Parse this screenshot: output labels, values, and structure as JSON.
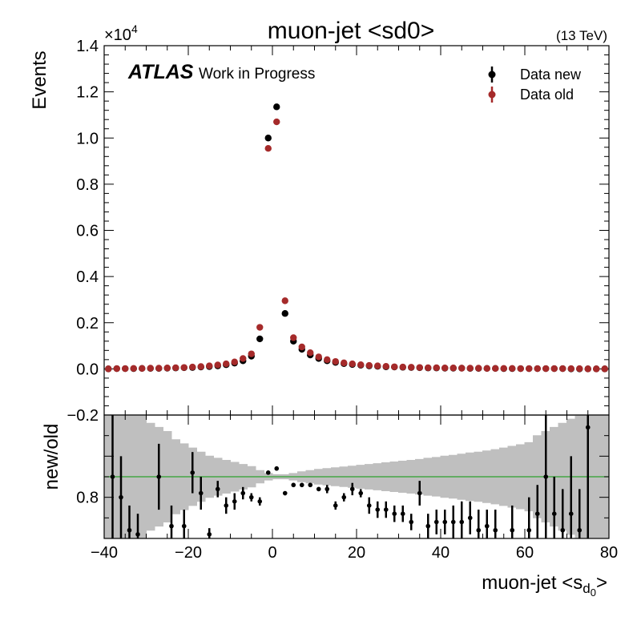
{
  "header": {
    "title": "muon-jet <sd0>",
    "energy": "(13 TeV)",
    "atlas": "ATLAS",
    "status": "Work in Progress",
    "exponent_base": "×10",
    "exponent_power": "4"
  },
  "colors": {
    "data_new": "#000000",
    "data_old": "#a52a2a",
    "band": "#bfbfbf",
    "ref_line": "#2ca02c"
  },
  "chart_data": [
    {
      "type": "scatter",
      "title": "muon-jet <sd0>",
      "ylabel": "Events",
      "xlim": [
        -40,
        80
      ],
      "ylim": [
        -0.2,
        1.4
      ],
      "y_scale_note": "×10^4",
      "yticks": [
        "−0.2",
        "0.0",
        "0.2",
        "0.4",
        "0.6",
        "0.8",
        "1.0",
        "1.2",
        "1.4"
      ],
      "legend_position": "top-right",
      "series": [
        {
          "name": "Data new",
          "x": [
            -39,
            -37,
            -35,
            -33,
            -31,
            -29,
            -27,
            -25,
            -23,
            -21,
            -19,
            -17,
            -15,
            -13,
            -11,
            -9,
            -7,
            -5,
            -3,
            -1,
            1,
            3,
            5,
            7,
            9,
            11,
            13,
            15,
            17,
            19,
            21,
            23,
            25,
            27,
            29,
            31,
            33,
            35,
            37,
            39,
            41,
            43,
            45,
            47,
            49,
            51,
            53,
            55,
            57,
            59,
            61,
            63,
            65,
            67,
            69,
            71,
            73,
            75,
            77,
            79
          ],
          "y": [
            0.0,
            0.001,
            0.001,
            0.001,
            0.002,
            0.002,
            0.002,
            0.003,
            0.004,
            0.005,
            0.006,
            0.008,
            0.01,
            0.013,
            0.018,
            0.025,
            0.035,
            0.055,
            0.13,
            1.0,
            1.135,
            0.24,
            0.12,
            0.085,
            0.06,
            0.045,
            0.035,
            0.028,
            0.023,
            0.019,
            0.016,
            0.013,
            0.011,
            0.009,
            0.008,
            0.007,
            0.006,
            0.005,
            0.004,
            0.004,
            0.003,
            0.003,
            0.003,
            0.002,
            0.002,
            0.002,
            0.002,
            0.001,
            0.001,
            0.001,
            0.001,
            0.001,
            0.001,
            0.001,
            0.001,
            0.0,
            0.0,
            0.0,
            0.0,
            0.0
          ]
        },
        {
          "name": "Data old",
          "x": [
            -39,
            -37,
            -35,
            -33,
            -31,
            -29,
            -27,
            -25,
            -23,
            -21,
            -19,
            -17,
            -15,
            -13,
            -11,
            -9,
            -7,
            -5,
            -3,
            -1,
            1,
            3,
            5,
            7,
            9,
            11,
            13,
            15,
            17,
            19,
            21,
            23,
            25,
            27,
            29,
            31,
            33,
            35,
            37,
            39,
            41,
            43,
            45,
            47,
            49,
            51,
            53,
            55,
            57,
            59,
            61,
            63,
            65,
            67,
            69,
            71,
            73,
            75,
            77,
            79
          ],
          "y": [
            0.0,
            0.001,
            0.001,
            0.002,
            0.002,
            0.003,
            0.003,
            0.004,
            0.005,
            0.006,
            0.008,
            0.01,
            0.013,
            0.017,
            0.022,
            0.03,
            0.045,
            0.065,
            0.18,
            0.955,
            1.07,
            0.295,
            0.135,
            0.095,
            0.07,
            0.052,
            0.04,
            0.032,
            0.026,
            0.022,
            0.018,
            0.015,
            0.013,
            0.011,
            0.009,
            0.008,
            0.007,
            0.006,
            0.005,
            0.005,
            0.004,
            0.004,
            0.003,
            0.003,
            0.003,
            0.002,
            0.002,
            0.002,
            0.002,
            0.001,
            0.001,
            0.001,
            0.001,
            0.001,
            0.001,
            0.001,
            0.001,
            0.0,
            0.0,
            0.0
          ]
        }
      ]
    },
    {
      "type": "scatter",
      "ylabel": "new/old",
      "xlabel": "muon-jet <s",
      "xlabel_sub": "d",
      "xlabel_subsub": "0",
      "xlabel_end": ">",
      "xlim": [
        -40,
        80
      ],
      "ylim": [
        0.7,
        1.0
      ],
      "yticks": [
        "0.8"
      ],
      "xticks": [
        "−40",
        "−20",
        "0",
        "20",
        "40",
        "60",
        "80"
      ],
      "reference_line": 0.85,
      "ratio": {
        "x": [
          -38,
          -36,
          -34,
          -32,
          -27,
          -24,
          -21,
          -19,
          -17,
          -15,
          -13,
          -11,
          -9,
          -7,
          -5,
          -3,
          -1,
          1,
          3,
          5,
          7,
          9,
          11,
          13,
          15,
          17,
          19,
          21,
          23,
          25,
          27,
          29,
          31,
          33,
          35,
          37,
          39,
          41,
          43,
          45,
          47,
          49,
          51,
          53,
          57,
          61,
          63,
          65,
          67,
          69,
          71,
          73,
          75
        ],
        "y": [
          0.85,
          0.8,
          0.72,
          0.71,
          0.85,
          0.73,
          0.73,
          0.86,
          0.81,
          0.71,
          0.82,
          0.78,
          0.79,
          0.81,
          0.8,
          0.79,
          0.86,
          0.87,
          0.81,
          0.83,
          0.83,
          0.83,
          0.82,
          0.82,
          0.78,
          0.8,
          0.82,
          0.81,
          0.78,
          0.77,
          0.77,
          0.76,
          0.76,
          0.74,
          0.81,
          0.73,
          0.74,
          0.74,
          0.74,
          0.74,
          0.75,
          0.72,
          0.73,
          0.72,
          0.72,
          0.72,
          0.76,
          0.85,
          0.76,
          0.72,
          0.76,
          0.72,
          0.97
        ],
        "err": [
          0.15,
          0.1,
          0.06,
          0.05,
          0.08,
          0.05,
          0.04,
          0.05,
          0.04,
          0.015,
          0.02,
          0.02,
          0.02,
          0.015,
          0.01,
          0.01,
          0.005,
          0.005,
          0.005,
          0.005,
          0.005,
          0.005,
          0.005,
          0.01,
          0.01,
          0.01,
          0.015,
          0.01,
          0.02,
          0.02,
          0.02,
          0.02,
          0.02,
          0.02,
          0.03,
          0.03,
          0.03,
          0.03,
          0.04,
          0.05,
          0.04,
          0.05,
          0.04,
          0.05,
          0.06,
          0.08,
          0.07,
          0.16,
          0.09,
          0.1,
          0.14,
          0.1,
          0.3
        ]
      },
      "band": {
        "x": [
          -40,
          -38,
          -36,
          -34,
          -32,
          -30,
          -28,
          -26,
          -24,
          -22,
          -20,
          -18,
          -16,
          -14,
          -12,
          -10,
          -8,
          -6,
          -4,
          -2,
          0,
          2,
          4,
          6,
          8,
          10,
          12,
          14,
          16,
          18,
          20,
          22,
          24,
          26,
          28,
          30,
          32,
          34,
          36,
          38,
          40,
          42,
          44,
          46,
          48,
          50,
          52,
          54,
          56,
          58,
          60,
          62,
          64,
          66,
          68,
          70,
          72,
          74,
          76,
          78,
          80
        ],
        "half_width": [
          0.3,
          0.25,
          0.2,
          0.17,
          0.15,
          0.13,
          0.12,
          0.11,
          0.09,
          0.08,
          0.07,
          0.06,
          0.05,
          0.045,
          0.04,
          0.035,
          0.03,
          0.025,
          0.015,
          0.008,
          0.005,
          0.005,
          0.008,
          0.012,
          0.015,
          0.018,
          0.02,
          0.022,
          0.024,
          0.026,
          0.028,
          0.03,
          0.032,
          0.034,
          0.036,
          0.038,
          0.04,
          0.042,
          0.045,
          0.047,
          0.05,
          0.052,
          0.055,
          0.058,
          0.06,
          0.063,
          0.066,
          0.07,
          0.074,
          0.078,
          0.083,
          0.1,
          0.11,
          0.12,
          0.13,
          0.14,
          0.16,
          0.17,
          0.3,
          0.3,
          0.3
        ]
      }
    }
  ]
}
